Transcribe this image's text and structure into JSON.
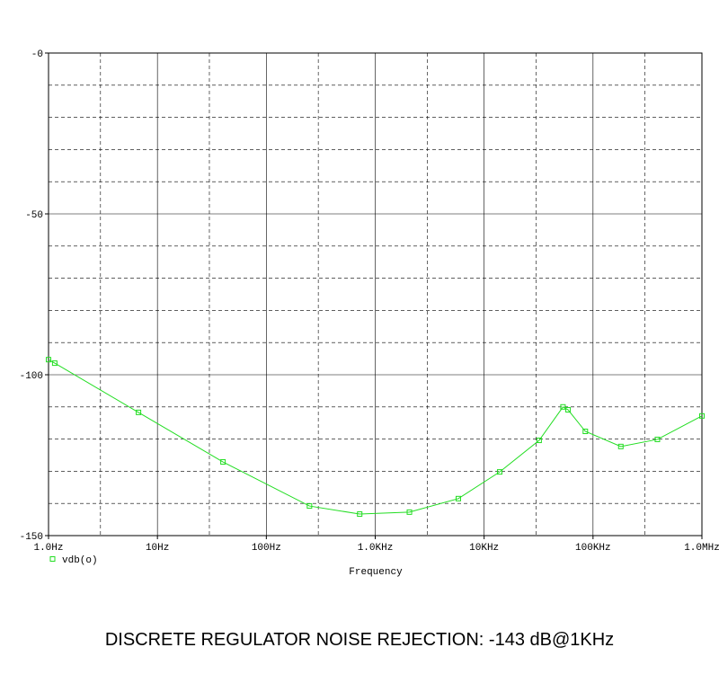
{
  "chart_data": {
    "type": "line",
    "title": "DISCRETE REGULATOR NOISE REJECTION: -143 dB@1KHz",
    "x_label": "Frequency",
    "log_x": true,
    "xlim": [
      1,
      1000000
    ],
    "ylim": [
      -150,
      0
    ],
    "xticks": [
      {
        "value": 1,
        "label": "1.0Hz"
      },
      {
        "value": 10,
        "label": "10Hz"
      },
      {
        "value": 100,
        "label": "100Hz"
      },
      {
        "value": 1000,
        "label": "1.0KHz"
      },
      {
        "value": 10000,
        "label": "10KHz"
      },
      {
        "value": 100000,
        "label": "100KHz"
      },
      {
        "value": 1000000,
        "label": "1.0MHz"
      }
    ],
    "yticks": [
      {
        "value": 0,
        "label": "-0"
      },
      -50,
      -100,
      -150
    ],
    "minor_xticks": [
      3,
      30,
      300,
      3000,
      30000,
      300000
    ],
    "minor_yticks": [
      -10,
      -20,
      -30,
      -40,
      -60,
      -70,
      -80,
      -90,
      -110,
      -120,
      -130,
      -140
    ],
    "grid": true,
    "x": [
      1,
      1.14,
      6.7,
      40,
      249,
      720,
      2060,
      5800,
      13900,
      32000,
      53000,
      59000,
      85000,
      180000,
      390000,
      1000000
    ],
    "series": [
      {
        "name": "vdb(o)",
        "color": "#22dd22",
        "values": [
          -95.3,
          -96.4,
          -111.7,
          -127.1,
          -140.8,
          -143.3,
          -142.7,
          -138.5,
          -130.2,
          -120.4,
          -110,
          -110.9,
          -117.6,
          -122.3,
          -120.1,
          -112.8
        ]
      }
    ]
  }
}
